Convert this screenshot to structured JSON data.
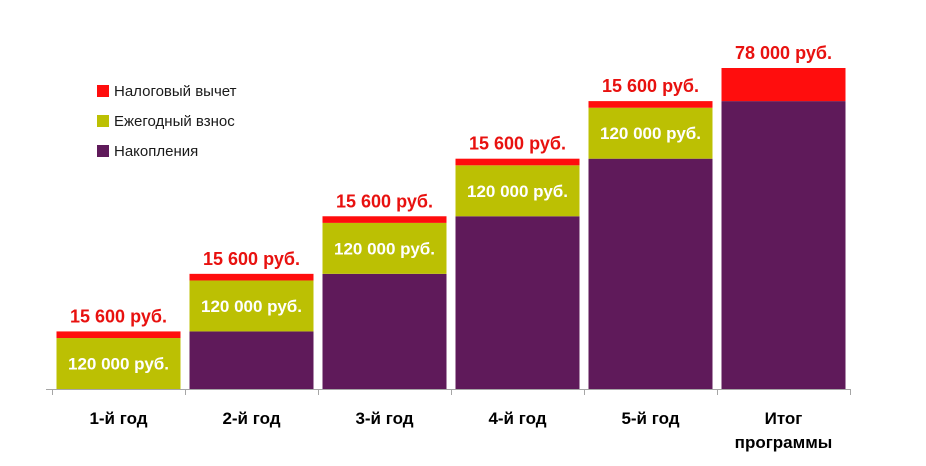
{
  "chart_data": {
    "type": "bar",
    "stacked": true,
    "categories": [
      [
        "1-й год"
      ],
      [
        "2-й год"
      ],
      [
        "3-й год"
      ],
      [
        "4-й год"
      ],
      [
        "5-й год"
      ],
      [
        "Итог",
        "программы"
      ]
    ],
    "series": [
      {
        "name": "Накопления",
        "color": "#5f1a5a",
        "values": [
          0,
          135600,
          271200,
          406800,
          542400,
          678000
        ],
        "labels": [
          "",
          "",
          "",
          "",
          "",
          ""
        ]
      },
      {
        "name": "Ежегодный взнос",
        "color": "#bcc003",
        "values": [
          120000,
          120000,
          120000,
          120000,
          120000,
          0
        ],
        "labels": [
          "120 000 руб.",
          "120 000 руб.",
          "120 000 руб.",
          "120 000 руб.",
          "120 000 руб.",
          ""
        ]
      },
      {
        "name": "Налоговый вычет",
        "color": "#ff0d0d",
        "values": [
          15600,
          15600,
          15600,
          15600,
          15600,
          78000
        ],
        "labels": [
          "15 600 руб.",
          "15 600 руб.",
          "15 600 руб.",
          "15 600 руб.",
          "15 600 руб.",
          "78 000 руб."
        ]
      }
    ],
    "legend": {
      "position": "top-left",
      "order": [
        "Налоговый вычет",
        "Ежегодный взнос",
        "Накопления"
      ]
    },
    "ylim": [
      0,
      756000
    ],
    "grid": false,
    "axis_color": "#a6a6a6"
  }
}
